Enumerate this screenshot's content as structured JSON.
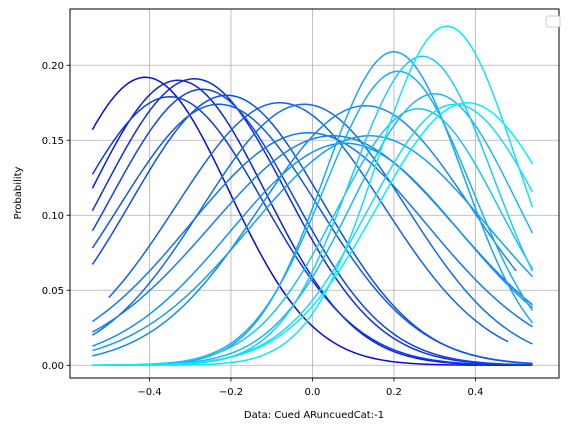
{
  "chart_data": {
    "type": "line",
    "xlabel": "Data: Cued ARuncuedCat:-1",
    "ylabel": "Probability",
    "xlim": [
      -0.595,
      0.605
    ],
    "ylim": [
      -0.0085,
      0.2375
    ],
    "xticks": [
      -0.4,
      -0.2,
      0.0,
      0.2,
      0.4
    ],
    "xtick_labels": [
      "−0.4",
      "−0.2",
      "0.0",
      "0.2",
      "0.4"
    ],
    "yticks": [
      0.0,
      0.05,
      0.1,
      0.15,
      0.2
    ],
    "ytick_labels": [
      "0.00",
      "0.05",
      "0.10",
      "0.15",
      "0.20"
    ],
    "grid": true,
    "legend": "top-right, empty",
    "series": [
      {
        "color": "#0a0ad8",
        "mu": -0.41,
        "sigma": 0.205,
        "peak": 0.192,
        "xmin": -0.54,
        "xmax": 0.54
      },
      {
        "color": "#0b1fe0",
        "mu": -0.33,
        "sigma": 0.215,
        "peak": 0.19,
        "xmin": -0.54,
        "xmax": 0.54
      },
      {
        "color": "#0c2ee0",
        "mu": -0.29,
        "sigma": 0.225,
        "peak": 0.191,
        "xmin": -0.54,
        "xmax": 0.54
      },
      {
        "color": "#0d3be2",
        "mu": -0.35,
        "sigma": 0.23,
        "peak": 0.179,
        "xmin": -0.54,
        "xmax": 0.54
      },
      {
        "color": "#0e45e4",
        "mu": -0.27,
        "sigma": 0.225,
        "peak": 0.184,
        "xmin": -0.54,
        "xmax": 0.54
      },
      {
        "color": "#0f4ee6",
        "mu": -0.21,
        "sigma": 0.235,
        "peak": 0.18,
        "xmin": -0.54,
        "xmax": 0.54
      },
      {
        "color": "#1058e8",
        "mu": -0.23,
        "sigma": 0.245,
        "peak": 0.174,
        "xmin": -0.54,
        "xmax": 0.54
      },
      {
        "color": "#1262ea",
        "mu": -0.08,
        "sigma": 0.255,
        "peak": 0.175,
        "xmin": -0.5,
        "xmax": 0.48
      },
      {
        "color": "#136cec",
        "mu": -0.02,
        "sigma": 0.25,
        "peak": 0.174,
        "xmin": -0.54,
        "xmax": 0.54
      },
      {
        "color": "#1476ee",
        "mu": -0.01,
        "sigma": 0.29,
        "peak": 0.155,
        "xmin": -0.54,
        "xmax": 0.54
      },
      {
        "color": "#1580ef",
        "mu": 0.05,
        "sigma": 0.3,
        "peak": 0.153,
        "xmin": -0.54,
        "xmax": 0.54
      },
      {
        "color": "#1688f0",
        "mu": 0.13,
        "sigma": 0.26,
        "peak": 0.173,
        "xmin": -0.54,
        "xmax": 0.5
      },
      {
        "color": "#1792f1",
        "mu": 0.08,
        "sigma": 0.28,
        "peak": 0.148,
        "xmin": -0.54,
        "xmax": 0.54
      },
      {
        "color": "#189cf2",
        "mu": 0.14,
        "sigma": 0.29,
        "peak": 0.153,
        "xmin": -0.54,
        "xmax": 0.54
      },
      {
        "color": "#19a6f3",
        "mu": 0.2,
        "sigma": 0.17,
        "peak": 0.209,
        "xmin": -0.54,
        "xmax": 0.54
      },
      {
        "color": "#1aaff4",
        "mu": 0.21,
        "sigma": 0.18,
        "peak": 0.196,
        "xmin": -0.54,
        "xmax": 0.54
      },
      {
        "color": "#1bb8f5",
        "mu": 0.3,
        "sigma": 0.2,
        "peak": 0.181,
        "xmin": -0.54,
        "xmax": 0.54
      },
      {
        "color": "#1cc2f6",
        "mu": 0.26,
        "sigma": 0.2,
        "peak": 0.171,
        "xmin": -0.54,
        "xmax": 0.54
      },
      {
        "color": "#1dcdf7",
        "mu": 0.27,
        "sigma": 0.175,
        "peak": 0.206,
        "xmin": -0.54,
        "xmax": 0.54
      },
      {
        "color": "#1ed8f8",
        "mu": 0.35,
        "sigma": 0.21,
        "peak": 0.174,
        "xmin": -0.54,
        "xmax": 0.54
      },
      {
        "color": "#10e4fa",
        "mu": 0.33,
        "sigma": 0.17,
        "peak": 0.226,
        "xmin": -0.54,
        "xmax": 0.54
      },
      {
        "color": "#00f0fc",
        "mu": 0.38,
        "sigma": 0.22,
        "peak": 0.175,
        "xmin": -0.54,
        "xmax": 0.54
      }
    ]
  }
}
